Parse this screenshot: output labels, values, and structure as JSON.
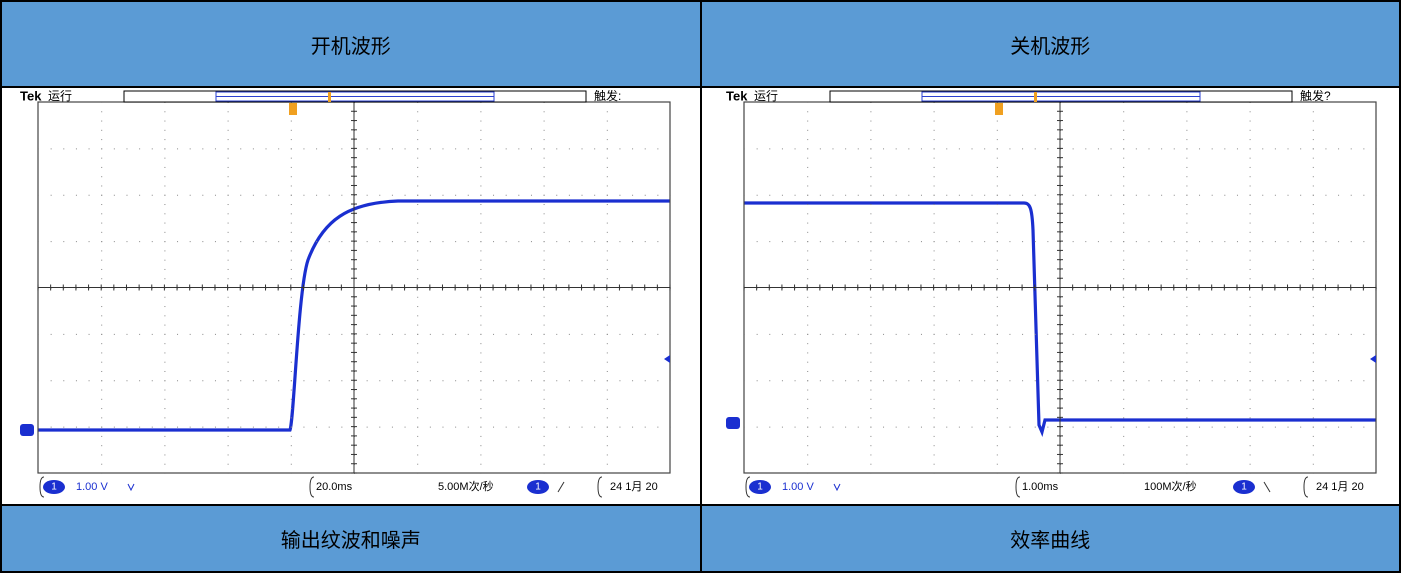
{
  "table": {
    "rows": [
      [
        "开机波形",
        "关机波形"
      ],
      [
        "输出纹波和噪声",
        "效率曲线"
      ]
    ]
  },
  "scopes": [
    {
      "brand": "Tek",
      "status": "运行",
      "trigger_status": "触发:",
      "channel": "1",
      "volts_per_div": "1.00 V",
      "time_per_div": "20.0ms",
      "sample_rate": "5.00M次/秒",
      "date": "24 1月 20"
    },
    {
      "brand": "Tek",
      "status": "运行",
      "trigger_status": "触发?",
      "channel": "1",
      "volts_per_div": "1.00 V",
      "time_per_div": "1.00ms",
      "sample_rate": "100M次/秒",
      "date": "24 1月 20"
    }
  ]
}
